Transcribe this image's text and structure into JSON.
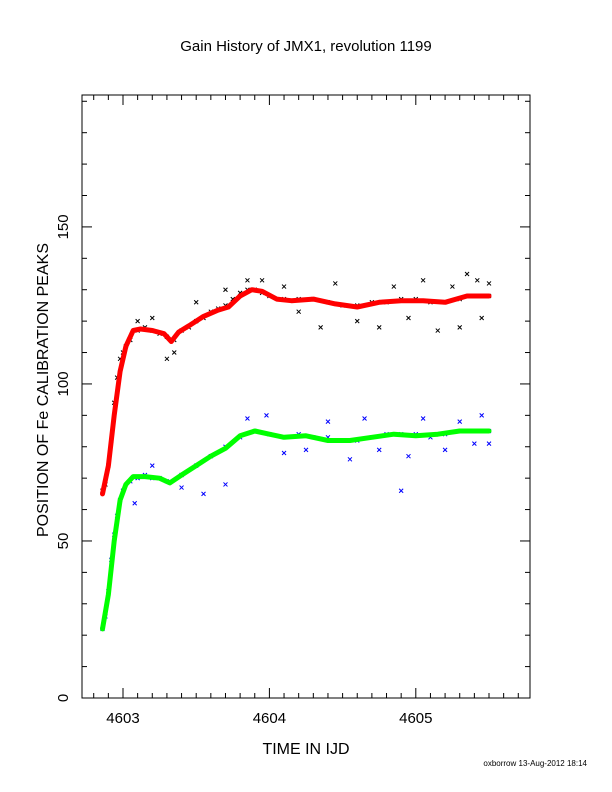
{
  "chart_data": {
    "type": "scatter",
    "title": "Gain History of JMX1, revolution 1199",
    "xlabel": "TIME IN IJD",
    "ylabel": "POSITION OF Fe CALIBRATION PEAKS",
    "xlim": [
      4602.72,
      4605.78
    ],
    "ylim": [
      0,
      192
    ],
    "x_ticks": [
      4603,
      4604,
      4605
    ],
    "x_tick_labels": [
      "4603",
      "4604",
      "4605"
    ],
    "y_ticks": [
      0,
      50,
      100,
      150
    ],
    "y_tick_labels": [
      "0",
      "50",
      "100",
      "150"
    ],
    "grid": false,
    "legend": "none",
    "footer": "oxborrow 13-Aug-2012 18:14",
    "series": [
      {
        "kind": "scatter-x",
        "color": "#000000",
        "points": [
          [
            4602.86,
            66
          ],
          [
            4602.88,
            68
          ],
          [
            4602.9,
            74
          ],
          [
            4602.92,
            82
          ],
          [
            4602.94,
            94
          ],
          [
            4602.96,
            102
          ],
          [
            4602.98,
            108
          ],
          [
            4603.0,
            110
          ],
          [
            4603.02,
            112
          ],
          [
            4603.05,
            114
          ],
          [
            4603.1,
            117
          ],
          [
            4603.15,
            118
          ],
          [
            4603.2,
            117
          ],
          [
            4603.25,
            116
          ],
          [
            4603.3,
            115
          ],
          [
            4603.35,
            114
          ],
          [
            4603.4,
            117
          ],
          [
            4603.45,
            118
          ],
          [
            4603.5,
            120
          ],
          [
            4603.55,
            121
          ],
          [
            4603.6,
            123
          ],
          [
            4603.65,
            124
          ],
          [
            4603.7,
            125
          ],
          [
            4603.75,
            127
          ],
          [
            4603.8,
            129
          ],
          [
            4603.85,
            130
          ],
          [
            4603.9,
            130
          ],
          [
            4603.95,
            129
          ],
          [
            4604.0,
            128
          ],
          [
            4604.1,
            127
          ],
          [
            4604.2,
            127
          ],
          [
            4604.3,
            127
          ],
          [
            4604.4,
            126
          ],
          [
            4604.5,
            125
          ],
          [
            4604.6,
            125
          ],
          [
            4604.7,
            126
          ],
          [
            4604.8,
            126
          ],
          [
            4604.9,
            127
          ],
          [
            4605.0,
            127
          ],
          [
            4605.1,
            126
          ],
          [
            4605.2,
            126
          ],
          [
            4605.3,
            127
          ],
          [
            4605.4,
            128
          ],
          [
            4605.5,
            128
          ],
          [
            4603.1,
            120
          ],
          [
            4603.2,
            121
          ],
          [
            4603.3,
            108
          ],
          [
            4603.35,
            110
          ],
          [
            4603.5,
            126
          ],
          [
            4603.7,
            130
          ],
          [
            4603.85,
            133
          ],
          [
            4603.95,
            133
          ],
          [
            4604.1,
            131
          ],
          [
            4604.2,
            123
          ],
          [
            4604.35,
            118
          ],
          [
            4604.45,
            132
          ],
          [
            4604.6,
            120
          ],
          [
            4604.75,
            118
          ],
          [
            4604.85,
            131
          ],
          [
            4604.95,
            121
          ],
          [
            4605.05,
            133
          ],
          [
            4605.15,
            117
          ],
          [
            4605.25,
            131
          ],
          [
            4605.3,
            118
          ],
          [
            4605.35,
            135
          ],
          [
            4605.42,
            133
          ],
          [
            4605.45,
            121
          ],
          [
            4605.5,
            132
          ]
        ]
      },
      {
        "kind": "line",
        "color": "#ff0000",
        "points": [
          [
            4602.86,
            65
          ],
          [
            4602.9,
            74
          ],
          [
            4602.94,
            90
          ],
          [
            4602.98,
            104
          ],
          [
            4603.02,
            112
          ],
          [
            4603.07,
            117
          ],
          [
            4603.12,
            117.5
          ],
          [
            4603.2,
            117
          ],
          [
            4603.28,
            116
          ],
          [
            4603.33,
            113.5
          ],
          [
            4603.38,
            116.5
          ],
          [
            4603.45,
            118.5
          ],
          [
            4603.55,
            121.5
          ],
          [
            4603.65,
            123.5
          ],
          [
            4603.72,
            124.5
          ],
          [
            4603.8,
            128
          ],
          [
            4603.88,
            130
          ],
          [
            4603.95,
            129.5
          ],
          [
            4604.05,
            127
          ],
          [
            4604.15,
            126.5
          ],
          [
            4604.3,
            127
          ],
          [
            4604.45,
            125.5
          ],
          [
            4604.6,
            124.5
          ],
          [
            4604.75,
            126
          ],
          [
            4604.9,
            126.5
          ],
          [
            4605.05,
            126.5
          ],
          [
            4605.2,
            126
          ],
          [
            4605.35,
            128
          ],
          [
            4605.5,
            128
          ]
        ]
      },
      {
        "kind": "scatter-x",
        "color": "#0000ff",
        "points": [
          [
            4602.86,
            22
          ],
          [
            4602.88,
            26
          ],
          [
            4602.9,
            34
          ],
          [
            4602.92,
            44
          ],
          [
            4602.94,
            52
          ],
          [
            4602.96,
            58
          ],
          [
            4602.98,
            63
          ],
          [
            4603.0,
            66
          ],
          [
            4603.05,
            69
          ],
          [
            4603.1,
            70
          ],
          [
            4603.15,
            71
          ],
          [
            4603.2,
            70
          ],
          [
            4603.25,
            70
          ],
          [
            4603.3,
            69
          ],
          [
            4603.4,
            71
          ],
          [
            4603.5,
            74
          ],
          [
            4603.6,
            77
          ],
          [
            4603.7,
            80
          ],
          [
            4603.8,
            83
          ],
          [
            4603.9,
            85
          ],
          [
            4604.0,
            84
          ],
          [
            4604.1,
            83
          ],
          [
            4604.2,
            84
          ],
          [
            4604.3,
            83
          ],
          [
            4604.4,
            83
          ],
          [
            4604.5,
            82
          ],
          [
            4604.6,
            82
          ],
          [
            4604.7,
            83
          ],
          [
            4604.8,
            84
          ],
          [
            4604.9,
            84
          ],
          [
            4605.0,
            84
          ],
          [
            4605.1,
            83
          ],
          [
            4605.2,
            84
          ],
          [
            4605.3,
            85
          ],
          [
            4605.4,
            85
          ],
          [
            4605.5,
            85
          ],
          [
            4603.08,
            62
          ],
          [
            4603.2,
            74
          ],
          [
            4603.4,
            67
          ],
          [
            4603.55,
            65
          ],
          [
            4603.7,
            68
          ],
          [
            4603.85,
            89
          ],
          [
            4603.98,
            90
          ],
          [
            4604.1,
            78
          ],
          [
            4604.25,
            79
          ],
          [
            4604.4,
            88
          ],
          [
            4604.55,
            76
          ],
          [
            4604.65,
            89
          ],
          [
            4604.75,
            79
          ],
          [
            4604.9,
            66
          ],
          [
            4604.95,
            77
          ],
          [
            4605.05,
            89
          ],
          [
            4605.2,
            79
          ],
          [
            4605.3,
            88
          ],
          [
            4605.4,
            81
          ],
          [
            4605.45,
            90
          ],
          [
            4605.5,
            81
          ]
        ]
      },
      {
        "kind": "line",
        "color": "#00ff00",
        "points": [
          [
            4602.86,
            22
          ],
          [
            4602.9,
            33
          ],
          [
            4602.94,
            50
          ],
          [
            4602.98,
            63
          ],
          [
            4603.02,
            68
          ],
          [
            4603.07,
            70.5
          ],
          [
            4603.15,
            70.5
          ],
          [
            4603.25,
            70
          ],
          [
            4603.32,
            68.5
          ],
          [
            4603.4,
            71
          ],
          [
            4603.5,
            74
          ],
          [
            4603.6,
            77
          ],
          [
            4603.7,
            79.5
          ],
          [
            4603.8,
            83.5
          ],
          [
            4603.9,
            85
          ],
          [
            4604.0,
            84
          ],
          [
            4604.1,
            83
          ],
          [
            4604.25,
            83.5
          ],
          [
            4604.4,
            82
          ],
          [
            4604.55,
            82
          ],
          [
            4604.7,
            83
          ],
          [
            4604.85,
            84
          ],
          [
            4605.0,
            83.5
          ],
          [
            4605.15,
            84
          ],
          [
            4605.3,
            85
          ],
          [
            4605.5,
            85
          ]
        ]
      }
    ]
  }
}
